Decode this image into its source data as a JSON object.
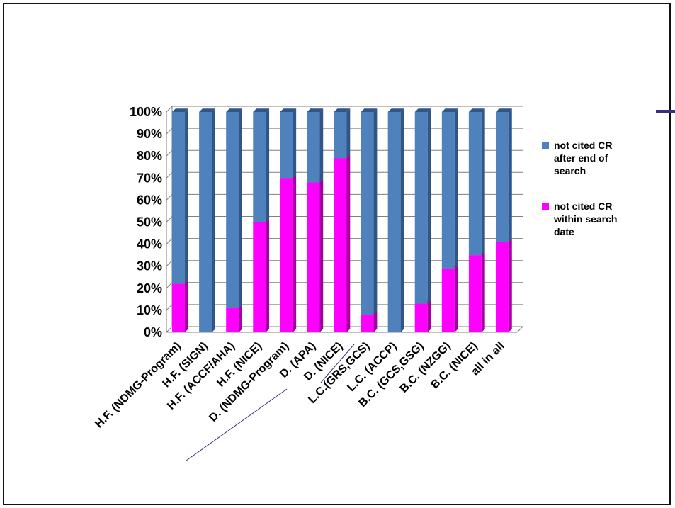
{
  "colors": {
    "series_top": "#4f81bd",
    "series_top_dark": "#2f5687",
    "series_bottom": "#ff00ff",
    "series_bottom_dark": "#a3009f",
    "accent": "#3b2e7e"
  },
  "chart_data": {
    "type": "bar",
    "stacked": "percent",
    "categories": [
      "H.F. (NDMG-Program)",
      "H.F. (SIGN)",
      "H.F. (ACCF/AHA)",
      "H.F. (NICE)",
      "D. (NDMG-Program)",
      "D. (APA)",
      "D. (NICE)",
      "L.C.(GRS,GCS)",
      "L.C. (ACCP)",
      "B.C. (GCS,GSG)",
      "B.C. (NZGG)",
      "B.C. (NICE)",
      "all in all"
    ],
    "series": [
      {
        "name": "not cited CR within search date",
        "values": [
          22,
          0,
          11,
          50,
          70,
          68,
          79,
          8,
          0,
          13,
          29,
          35,
          41
        ]
      },
      {
        "name": "not cited CR after end of search",
        "values": [
          78,
          100,
          89,
          50,
          30,
          32,
          21,
          92,
          100,
          87,
          71,
          65,
          59
        ]
      }
    ],
    "yticks": [
      "0%",
      "10%",
      "20%",
      "30%",
      "40%",
      "50%",
      "60%",
      "70%",
      "80%",
      "90%",
      "100%"
    ],
    "ylim": [
      0,
      100
    ],
    "legend_position": "right",
    "grid": true
  },
  "legend": {
    "items": [
      {
        "label": "not cited CR after end of search"
      },
      {
        "label": "not cited CR within search date"
      }
    ]
  }
}
